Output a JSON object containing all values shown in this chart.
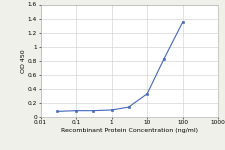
{
  "x": [
    0.03,
    0.1,
    0.3,
    1,
    3,
    10,
    30,
    100
  ],
  "y": [
    0.08,
    0.09,
    0.09,
    0.1,
    0.14,
    0.33,
    0.83,
    1.35
  ],
  "line_color": "#4466bb",
  "marker": "s",
  "marker_color": "#4466bb",
  "marker_size": 2.0,
  "linewidth": 0.8,
  "xlabel": "Recombinant Protein Concentration (ng/ml)",
  "ylabel": "OD 450",
  "xlim": [
    0.01,
    1000
  ],
  "ylim": [
    0,
    1.6
  ],
  "yticks": [
    0,
    0.2,
    0.4,
    0.6,
    0.8,
    1.0,
    1.2,
    1.4,
    1.6
  ],
  "ytick_labels": [
    "0",
    "0.2",
    "0.4",
    "0.6",
    "0.8",
    "1",
    "1.2",
    "1.4",
    "1.6"
  ],
  "xtick_vals": [
    0.01,
    0.1,
    1,
    10,
    100,
    1000
  ],
  "xtick_labels": [
    "0.01",
    "0.1",
    "1",
    "10",
    "100",
    "1000"
  ],
  "background_color": "#f0f0ea",
  "plot_bg_color": "#ffffff",
  "label_fontsize": 4.5,
  "tick_fontsize": 4.2,
  "grid_color": "#cccccc",
  "spine_color": "#aaaaaa"
}
